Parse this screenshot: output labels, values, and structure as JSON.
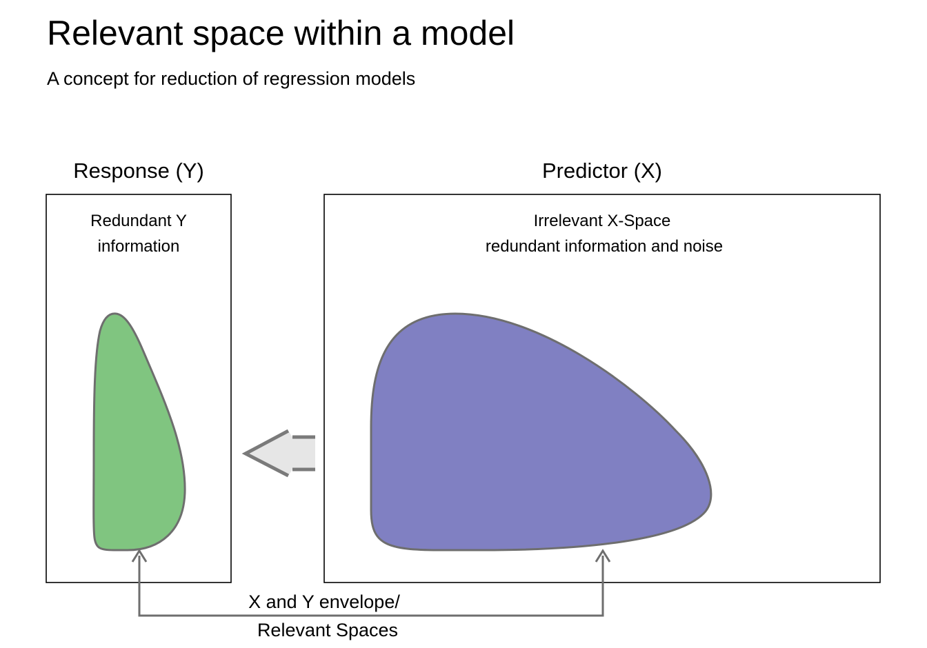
{
  "page": {
    "title": "Relevant space within a model",
    "subtitle": "A concept for reduction of regression models"
  },
  "response_panel": {
    "heading": "Response (Y)",
    "label_line1": "Redundant Y",
    "label_line2": "information",
    "shape_fill": "#80c580"
  },
  "predictor_panel": {
    "heading": "Predictor (X)",
    "label_line1": "Irrelevant X-Space",
    "label_line2": "redundant information and noise",
    "shape_fill": "#8080c2"
  },
  "envelope": {
    "label_line1": "X and Y envelope/",
    "label_line2": "Relevant Spaces"
  },
  "colors": {
    "outline": "#6e6e6e",
    "arrow_fill": "#e6e6e6",
    "box_border": "#000000"
  }
}
